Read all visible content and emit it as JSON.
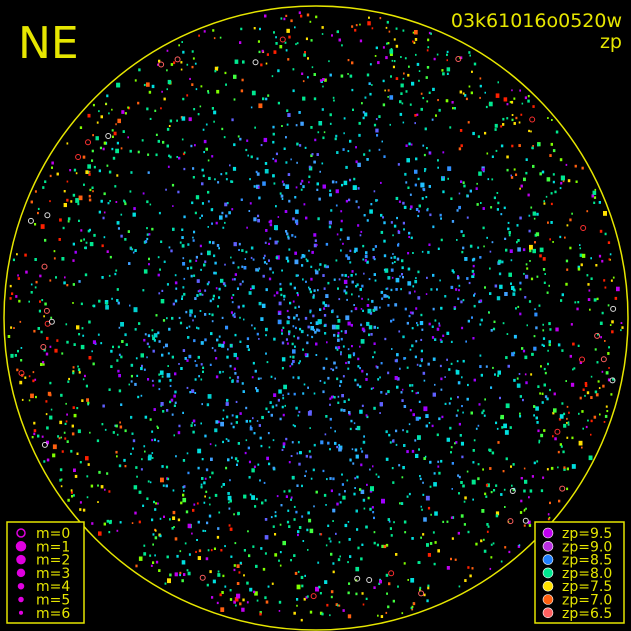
{
  "chart_data": {
    "type": "scatter",
    "title": "03k61016o0520w",
    "subtitle": "zp",
    "corner_label": "NE",
    "projection": "all-sky circle",
    "grid": false,
    "frame_color": "#e6e600",
    "magnitude_legend": {
      "placement": "bottom-left",
      "entries": [
        "m=0",
        "m=1",
        "m=2",
        "m=3",
        "m=4",
        "m=5",
        "m=6"
      ]
    },
    "zp_legend": {
      "placement": "bottom-right",
      "entries": [
        {
          "label": "zp=9.5",
          "zp": 9.5,
          "color": "#c000f0"
        },
        {
          "label": "zp=9.0",
          "zp": 9.0,
          "color": "#b830e0"
        },
        {
          "label": "zp=8.5",
          "zp": 8.5,
          "color": "#2080ff"
        },
        {
          "label": "zp=8.0",
          "zp": 8.0,
          "color": "#00e890"
        },
        {
          "label": "zp=7.5",
          "zp": 7.5,
          "color": "#ffe000"
        },
        {
          "label": "zp=7.0",
          "zp": 7.0,
          "color": "#ff6010"
        },
        {
          "label": "zp=6.5",
          "zp": 6.5,
          "color": "#ff6060"
        }
      ]
    }
  }
}
